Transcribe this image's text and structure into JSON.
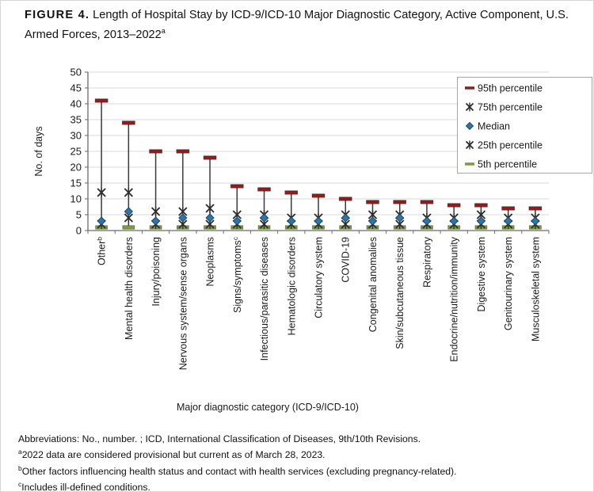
{
  "figure": {
    "label": "FIGURE 4.",
    "title": "Length of Hospital Stay by ICD-9/ICD-10 Major Diagnostic Category, Active Component, U.S. Armed Forces, 2013–2022",
    "title_sup": "a"
  },
  "chart_data": {
    "type": "line",
    "subtype": "percentile-hi-lo-markers",
    "title": "Length of Hospital Stay by ICD-9/ICD-10 Major Diagnostic Category, Active Component, U.S. Armed Forces, 2013–2022",
    "xlabel": "Major diagnostic category (ICD-9/ICD-10)",
    "ylabel": "No. of days",
    "ylim": [
      0,
      50
    ],
    "ytick_step": 5,
    "grid": true,
    "legend_position": "top-right",
    "colors": {
      "p95": "#8f1d1d",
      "p75": "#2e2e2e",
      "median": "#2e74a8",
      "p25": "#2e2e2e",
      "p5": "#7d9c3e",
      "stem": "#3a3a3a",
      "grid": "#d9d9d9",
      "axis": "#6b6b6b"
    },
    "legend": [
      {
        "key": "p95",
        "label": "95th percentile",
        "marker": "dash"
      },
      {
        "key": "p75",
        "label": "75th percentile",
        "marker": "star"
      },
      {
        "key": "median",
        "label": "Median",
        "marker": "diamond"
      },
      {
        "key": "p25",
        "label": "25th percentile",
        "marker": "star"
      },
      {
        "key": "p5",
        "label": "5th percentile",
        "marker": "dash"
      }
    ],
    "categories": [
      {
        "label": "Other",
        "sup": "b"
      },
      {
        "label": "Mental health disorders",
        "sup": ""
      },
      {
        "label": "Injury/poisoning",
        "sup": ""
      },
      {
        "label": "Nervous system/sense organs",
        "sup": ""
      },
      {
        "label": "Neoplasms",
        "sup": ""
      },
      {
        "label": "Signs/symptoms",
        "sup": "c"
      },
      {
        "label": "Infectious/parasitic diseases",
        "sup": ""
      },
      {
        "label": "Hematologic disorders",
        "sup": ""
      },
      {
        "label": "Circulatory system",
        "sup": ""
      },
      {
        "label": "COVID-19",
        "sup": ""
      },
      {
        "label": "Congenital anomalies",
        "sup": ""
      },
      {
        "label": "Skin/subcutaneous tissue",
        "sup": ""
      },
      {
        "label": "Respiratory",
        "sup": ""
      },
      {
        "label": "Endocrine/nutrition/immunity",
        "sup": ""
      },
      {
        "label": "Digestive system",
        "sup": ""
      },
      {
        "label": "Genitourinary system",
        "sup": ""
      },
      {
        "label": "Musculoskeletal system",
        "sup": ""
      }
    ],
    "series": [
      {
        "key": "p95",
        "name": "95th percentile",
        "values": [
          41,
          34,
          25,
          25,
          23,
          14,
          13,
          12,
          11,
          10,
          9,
          9,
          9,
          8,
          8,
          7,
          7
        ]
      },
      {
        "key": "p75",
        "name": "75th percentile",
        "values": [
          12,
          12,
          6,
          6,
          7,
          5,
          5,
          4,
          4,
          5,
          5,
          5,
          4,
          4,
          5,
          4,
          4
        ]
      },
      {
        "key": "median",
        "name": "Median",
        "values": [
          3,
          6,
          3,
          4,
          4,
          3,
          4,
          3,
          3,
          4,
          3,
          4,
          3,
          3,
          3,
          3,
          3
        ]
      },
      {
        "key": "p25",
        "name": "25th percentile",
        "values": [
          2,
          4,
          2,
          2,
          2,
          2,
          2,
          2,
          2,
          2,
          2,
          2,
          2,
          2,
          2,
          2,
          2
        ]
      },
      {
        "key": "p5",
        "name": "5th percentile",
        "values": [
          1,
          1,
          1,
          1,
          1,
          1,
          1,
          1,
          1,
          1,
          1,
          1,
          1,
          1,
          1,
          1,
          1
        ]
      }
    ]
  },
  "footnotes": [
    {
      "sup": "",
      "text": "Abbreviations: No., number. ; ICD, International Classification of Diseases, 9th/10th Revisions."
    },
    {
      "sup": "a",
      "text": "2022 data are considered provisional but current as of March 28, 2023."
    },
    {
      "sup": "b",
      "text": "Other factors influencing health status and contact with health services (excluding pregnancy-related)."
    },
    {
      "sup": "c",
      "text": "Includes ill-defined conditions."
    }
  ]
}
